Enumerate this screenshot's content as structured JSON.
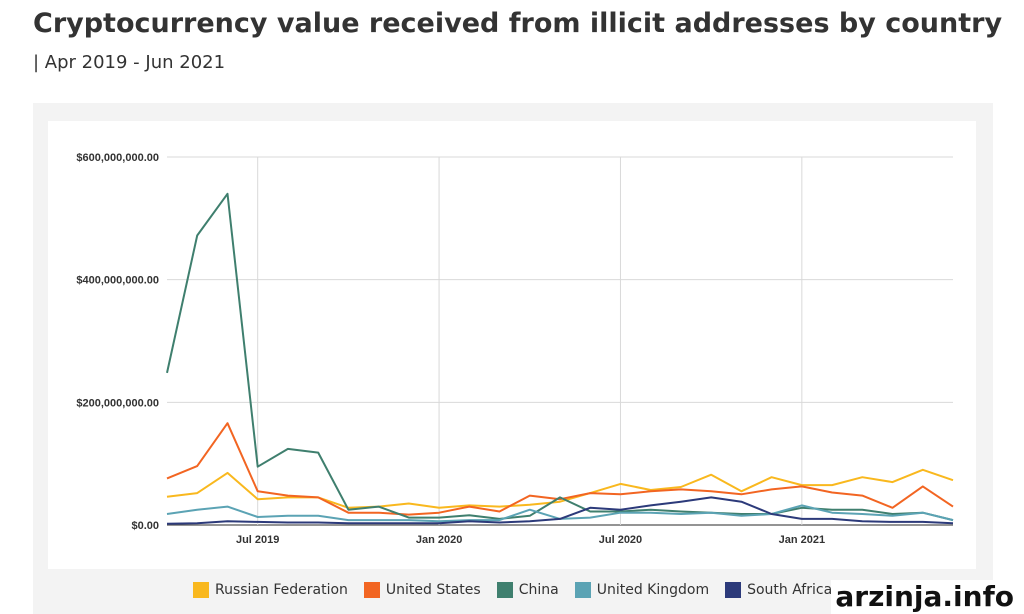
{
  "title": "Cryptocurrency value received from illicit addresses by country",
  "subtitle": "| Apr 2019 - Jun 2021",
  "watermark": "arzinja.info",
  "chart_data": {
    "type": "line",
    "ylim": [
      0,
      600000000
    ],
    "y_ticks": [
      0,
      200000000,
      400000000,
      600000000
    ],
    "y_tick_labels": [
      "$0.00",
      "$200,000,000.00",
      "$400,000,000.00",
      "$600,000,000.00"
    ],
    "x_tick_labels": [
      {
        "label": "Jul 2019",
        "x": "2019-07"
      },
      {
        "label": "Jan 2020",
        "x": "2020-01"
      },
      {
        "label": "Jul 2020",
        "x": "2020-07"
      },
      {
        "label": "Jan 2021",
        "x": "2021-01"
      }
    ],
    "x": [
      "2019-04",
      "2019-05",
      "2019-06",
      "2019-07",
      "2019-08",
      "2019-09",
      "2019-10",
      "2019-11",
      "2019-12",
      "2020-01",
      "2020-02",
      "2020-03",
      "2020-04",
      "2020-05",
      "2020-06",
      "2020-07",
      "2020-08",
      "2020-09",
      "2020-10",
      "2020-11",
      "2020-12",
      "2021-01",
      "2021-02",
      "2021-03",
      "2021-04",
      "2021-05",
      "2021-06"
    ],
    "grid": true,
    "legend_position": "bottom",
    "series": [
      {
        "name": "Russian Federation",
        "color": "#F9B81E",
        "values": [
          46000000,
          52000000,
          85000000,
          42000000,
          45000000,
          45000000,
          28000000,
          30000000,
          35000000,
          28000000,
          32000000,
          30000000,
          33000000,
          38000000,
          52000000,
          67000000,
          57000000,
          62000000,
          82000000,
          55000000,
          78000000,
          65000000,
          65000000,
          78000000,
          70000000,
          90000000,
          73000000
        ]
      },
      {
        "name": "United States",
        "color": "#F26522",
        "values": [
          76000000,
          96000000,
          166000000,
          55000000,
          48000000,
          45000000,
          20000000,
          20000000,
          17000000,
          20000000,
          30000000,
          22000000,
          48000000,
          42000000,
          52000000,
          50000000,
          55000000,
          58000000,
          55000000,
          50000000,
          58000000,
          63000000,
          53000000,
          48000000,
          28000000,
          63000000,
          30000000
        ]
      },
      {
        "name": "China",
        "color": "#3F7F6E",
        "values": [
          248000000,
          472000000,
          540000000,
          95000000,
          124000000,
          118000000,
          25000000,
          30000000,
          12000000,
          12000000,
          16000000,
          10000000,
          15000000,
          45000000,
          22000000,
          22000000,
          25000000,
          22000000,
          20000000,
          18000000,
          18000000,
          28000000,
          25000000,
          25000000,
          18000000,
          20000000,
          8000000
        ]
      },
      {
        "name": "United Kingdom",
        "color": "#5BA3B4",
        "values": [
          18000000,
          25000000,
          30000000,
          13000000,
          15000000,
          15000000,
          8000000,
          8000000,
          8000000,
          6000000,
          8000000,
          8000000,
          25000000,
          10000000,
          12000000,
          20000000,
          20000000,
          18000000,
          20000000,
          15000000,
          18000000,
          32000000,
          20000000,
          18000000,
          15000000,
          20000000,
          8000000
        ]
      },
      {
        "name": "South Africa",
        "color": "#2C3A7A",
        "values": [
          2000000,
          3000000,
          6000000,
          5000000,
          4000000,
          4000000,
          3000000,
          3000000,
          3000000,
          3000000,
          6000000,
          4000000,
          6000000,
          10000000,
          28000000,
          25000000,
          32000000,
          38000000,
          45000000,
          38000000,
          18000000,
          10000000,
          10000000,
          6000000,
          5000000,
          5000000,
          3000000
        ]
      }
    ]
  }
}
